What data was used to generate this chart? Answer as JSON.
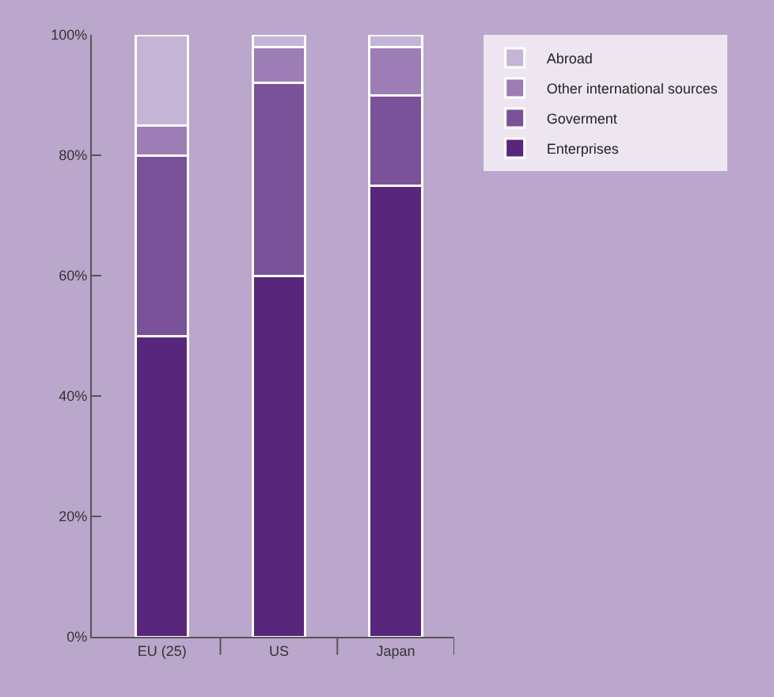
{
  "chart_data": {
    "type": "bar",
    "stacked": true,
    "categories": [
      "EU (25)",
      "US",
      "Japan"
    ],
    "series": [
      {
        "name": "Enterprises",
        "color": "#58267a",
        "values": [
          50,
          60,
          75
        ]
      },
      {
        "name": "Goverment",
        "color": "#7a5299",
        "values": [
          30,
          32,
          15
        ]
      },
      {
        "name": "Other international sources",
        "color": "#9d7db5",
        "values": [
          5,
          6,
          8
        ]
      },
      {
        "name": "Abroad",
        "color": "#c4b4d6",
        "values": [
          15,
          2,
          2
        ]
      }
    ],
    "ylim": [
      0,
      100
    ],
    "yticks": [
      {
        "value": 0,
        "label": "0%"
      },
      {
        "value": 20,
        "label": "20%"
      },
      {
        "value": 40,
        "label": "40%"
      },
      {
        "value": 60,
        "label": "60%"
      },
      {
        "value": 80,
        "label": "80%"
      },
      {
        "value": 100,
        "label": "100%"
      }
    ],
    "grid": false,
    "legend": "top right"
  }
}
